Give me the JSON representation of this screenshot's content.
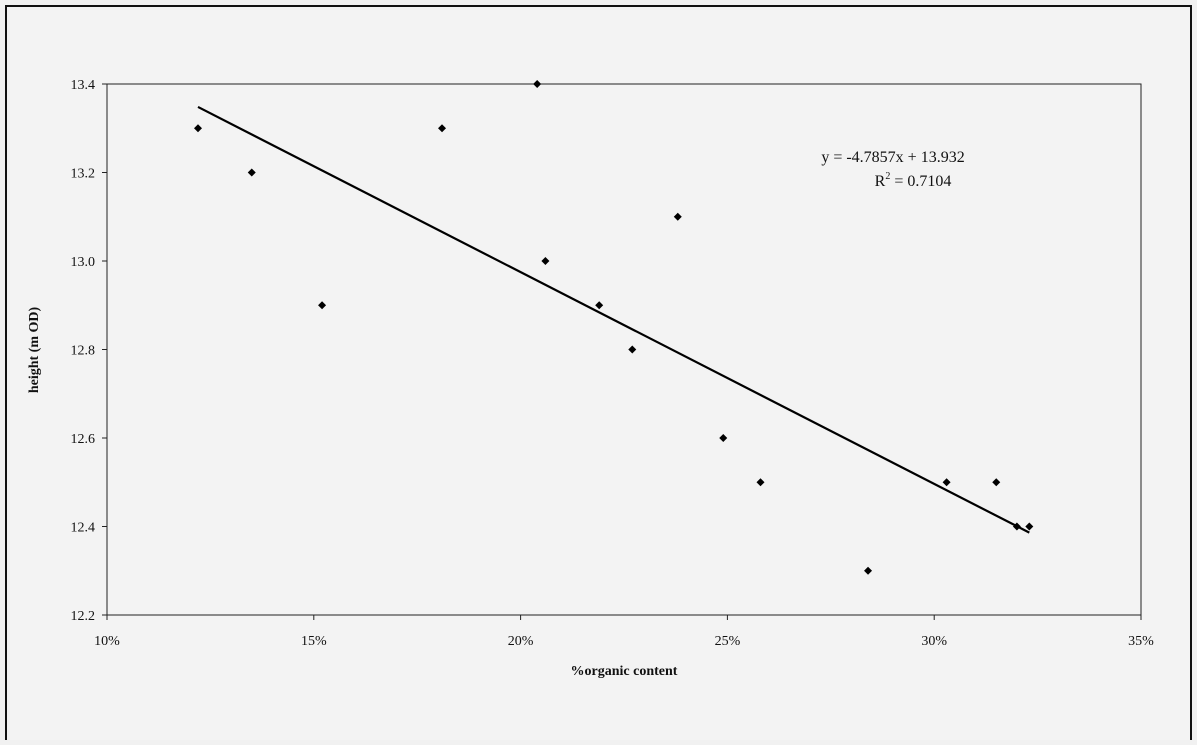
{
  "chart_data": {
    "type": "scatter",
    "xlabel": "%organic content",
    "ylabel": "height (m OD)",
    "xlim": [
      0.1,
      0.35
    ],
    "ylim": [
      12.2,
      13.4
    ],
    "x_ticks": [
      0.1,
      0.15,
      0.2,
      0.25,
      0.3,
      0.35
    ],
    "x_tick_labels": [
      "10%",
      "15%",
      "20%",
      "25%",
      "30%",
      "35%"
    ],
    "y_ticks": [
      12.2,
      12.4,
      12.6,
      12.8,
      13.0,
      13.2,
      13.4
    ],
    "y_tick_labels": [
      "12.2",
      "12.4",
      "12.6",
      "12.8",
      "13.0",
      "13.2",
      "13.4"
    ],
    "grid": false,
    "points": [
      {
        "x": 0.122,
        "y": 13.3
      },
      {
        "x": 0.135,
        "y": 13.2
      },
      {
        "x": 0.152,
        "y": 12.9
      },
      {
        "x": 0.181,
        "y": 13.3
      },
      {
        "x": 0.204,
        "y": 13.4
      },
      {
        "x": 0.206,
        "y": 13.0
      },
      {
        "x": 0.219,
        "y": 12.9
      },
      {
        "x": 0.227,
        "y": 12.8
      },
      {
        "x": 0.238,
        "y": 13.1
      },
      {
        "x": 0.249,
        "y": 12.6
      },
      {
        "x": 0.258,
        "y": 12.5
      },
      {
        "x": 0.284,
        "y": 12.3
      },
      {
        "x": 0.303,
        "y": 12.5
      },
      {
        "x": 0.315,
        "y": 12.5
      },
      {
        "x": 0.32,
        "y": 12.4
      },
      {
        "x": 0.323,
        "y": 12.4
      }
    ],
    "trendline": {
      "slope": -4.7857,
      "intercept": 13.932,
      "x_range": [
        0.122,
        0.323
      ]
    },
    "annotations": {
      "equation": "y = -4.7857x + 13.932",
      "r2_prefix": "R",
      "r2_power": "2",
      "r2_value": " = 0.7104"
    }
  }
}
